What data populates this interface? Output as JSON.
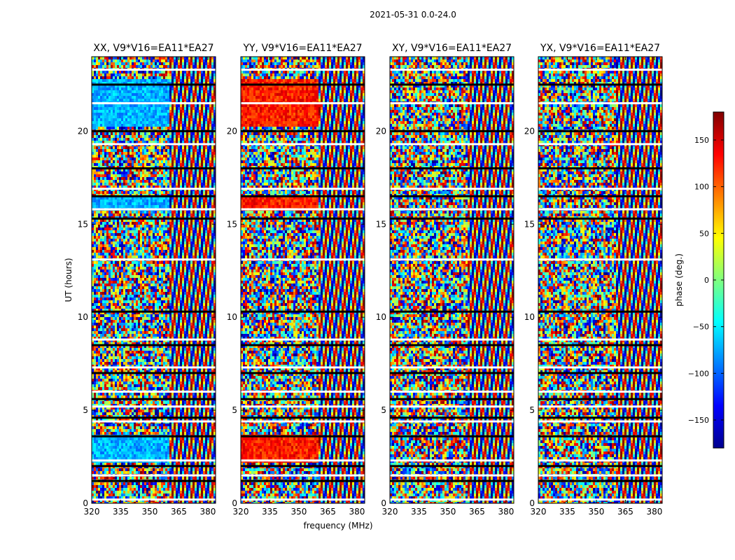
{
  "suptitle": "2021-05-31 0.0-24.0",
  "chart_data": {
    "type": "heatmap",
    "suptitle": "2021-05-31 0.0-24.0",
    "panels": [
      {
        "title": "XX, V9*V16=EA11*EA27",
        "polarization": "XX"
      },
      {
        "title": "YY, V9*V16=EA11*EA27",
        "polarization": "YY"
      },
      {
        "title": "XY, V9*V16=EA11*EA27",
        "polarization": "XY"
      },
      {
        "title": "YX, V9*V16=EA11*EA27",
        "polarization": "YX"
      }
    ],
    "xlabel": "frequency (MHz)",
    "ylabel": "UT (hours)",
    "xlim": [
      320,
      384
    ],
    "ylim": [
      0,
      24
    ],
    "xticks": [
      320,
      335,
      350,
      365,
      380
    ],
    "yticks": [
      0,
      5,
      10,
      15,
      20
    ],
    "colorbar": {
      "label": "phase (deg.)",
      "range": [
        -180,
        180
      ],
      "ticks": [
        -150,
        -100,
        -50,
        0,
        50,
        100,
        150
      ],
      "tick_labels": [
        "−150",
        "−100",
        "−50",
        "0",
        "50",
        "100",
        "150"
      ],
      "colormap": "jet"
    },
    "gaps_ut": [
      0.2,
      1.2,
      1.5,
      2.0,
      2.3,
      3.6,
      4.4,
      4.6,
      5.2,
      5.6,
      6.0,
      7.0,
      7.3,
      8.5,
      8.8,
      10.3,
      13.1,
      15.3,
      15.8,
      16.5,
      16.9,
      18.0,
      19.3,
      20.0,
      21.5,
      22.5,
      23.3
    ],
    "grid": false
  }
}
